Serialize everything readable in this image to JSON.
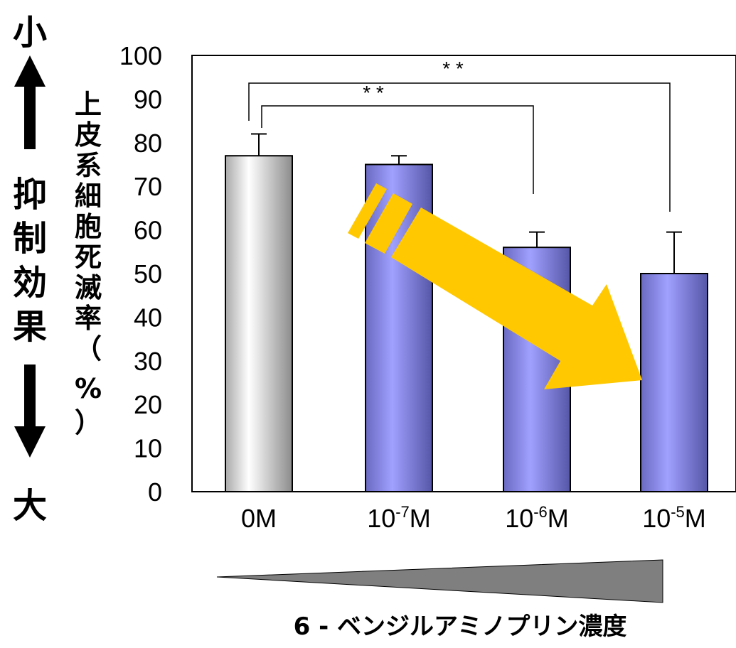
{
  "left_scale": {
    "top_label": "小",
    "middle_label": "抑制効果",
    "bottom_label": "大"
  },
  "chart_data": {
    "type": "bar",
    "ylabel": "上皮系細胞死滅率（%）",
    "ylim": [
      0,
      100
    ],
    "yticks": [
      0,
      10,
      20,
      30,
      40,
      50,
      60,
      70,
      80,
      90,
      100
    ],
    "categories": [
      {
        "base": "0M",
        "exp": "",
        "unit": ""
      },
      {
        "base": "10",
        "exp": "-7",
        "unit": "M"
      },
      {
        "base": "10",
        "exp": "-6",
        "unit": "M"
      },
      {
        "base": "10",
        "exp": "-5",
        "unit": "M"
      }
    ],
    "values": [
      77,
      75,
      56,
      50
    ],
    "errors": [
      5,
      2,
      3.5,
      9.5
    ],
    "bar_colors": [
      "#c8c8c8",
      "#8f8fe6",
      "#8f8fe6",
      "#8f8fe6"
    ],
    "significance": [
      {
        "from": 0,
        "to": 3,
        "label": "* *"
      },
      {
        "from": 0,
        "to": 2,
        "label": "* *"
      }
    ],
    "trend_arrow_color": "#ffc800",
    "xlabel": "6 - ベンジルアミノプリン濃度",
    "concentration_wedge_color": "#7f7f7f"
  }
}
